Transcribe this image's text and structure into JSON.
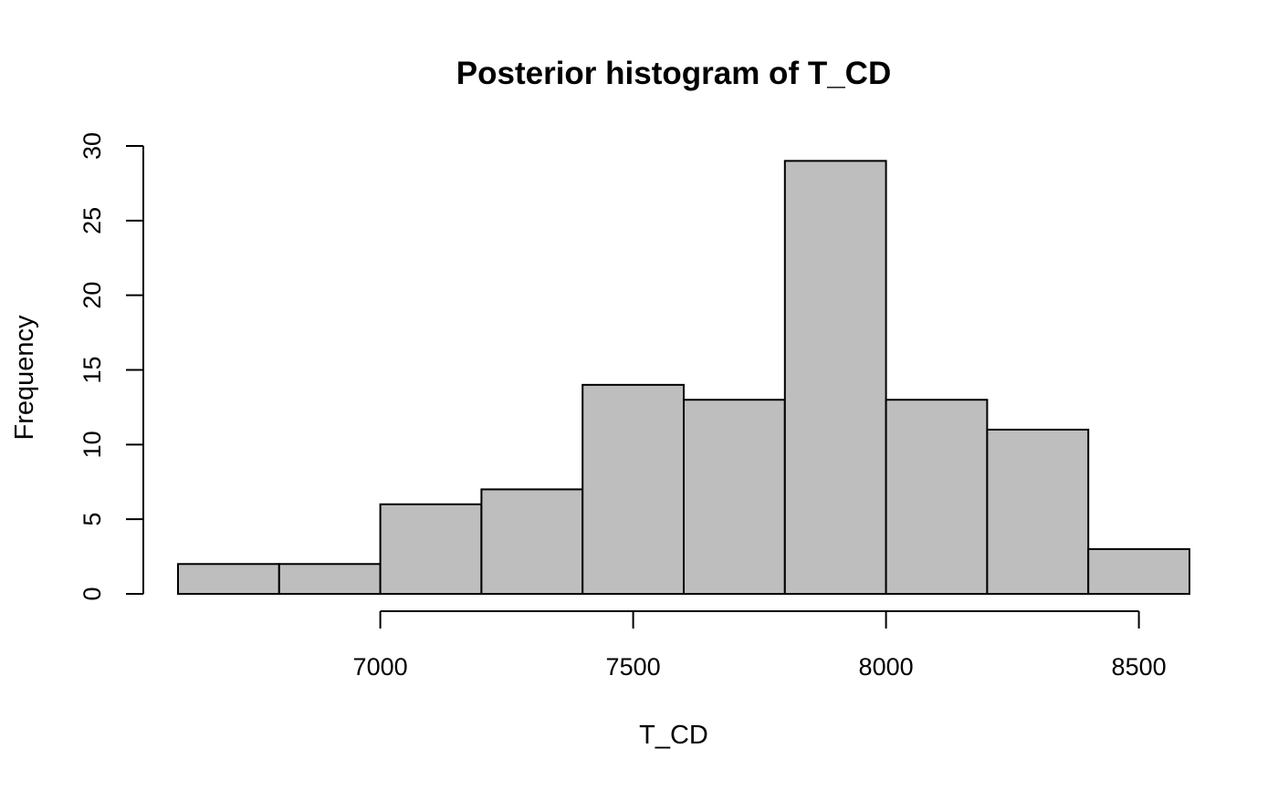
{
  "chart_data": {
    "type": "bar",
    "title": "Posterior histogram of T_CD",
    "xlabel": "T_CD",
    "ylabel": "Frequency",
    "bins": [
      {
        "start": 6600,
        "end": 6800,
        "count": 2
      },
      {
        "start": 6800,
        "end": 7000,
        "count": 2
      },
      {
        "start": 7000,
        "end": 7200,
        "count": 6
      },
      {
        "start": 7200,
        "end": 7400,
        "count": 7
      },
      {
        "start": 7400,
        "end": 7600,
        "count": 14
      },
      {
        "start": 7600,
        "end": 7800,
        "count": 13
      },
      {
        "start": 7800,
        "end": 8000,
        "count": 29
      },
      {
        "start": 8000,
        "end": 8200,
        "count": 13
      },
      {
        "start": 8200,
        "end": 8400,
        "count": 11
      },
      {
        "start": 8400,
        "end": 8600,
        "count": 3
      }
    ],
    "xticks": [
      7000,
      7500,
      8000,
      8500
    ],
    "yticks": [
      0,
      5,
      10,
      15,
      20,
      25,
      30
    ],
    "xlim": [
      6600,
      8600
    ],
    "ylim": [
      0,
      30
    ],
    "bar_color": "#bebebe",
    "grid": false,
    "legend": "none"
  }
}
